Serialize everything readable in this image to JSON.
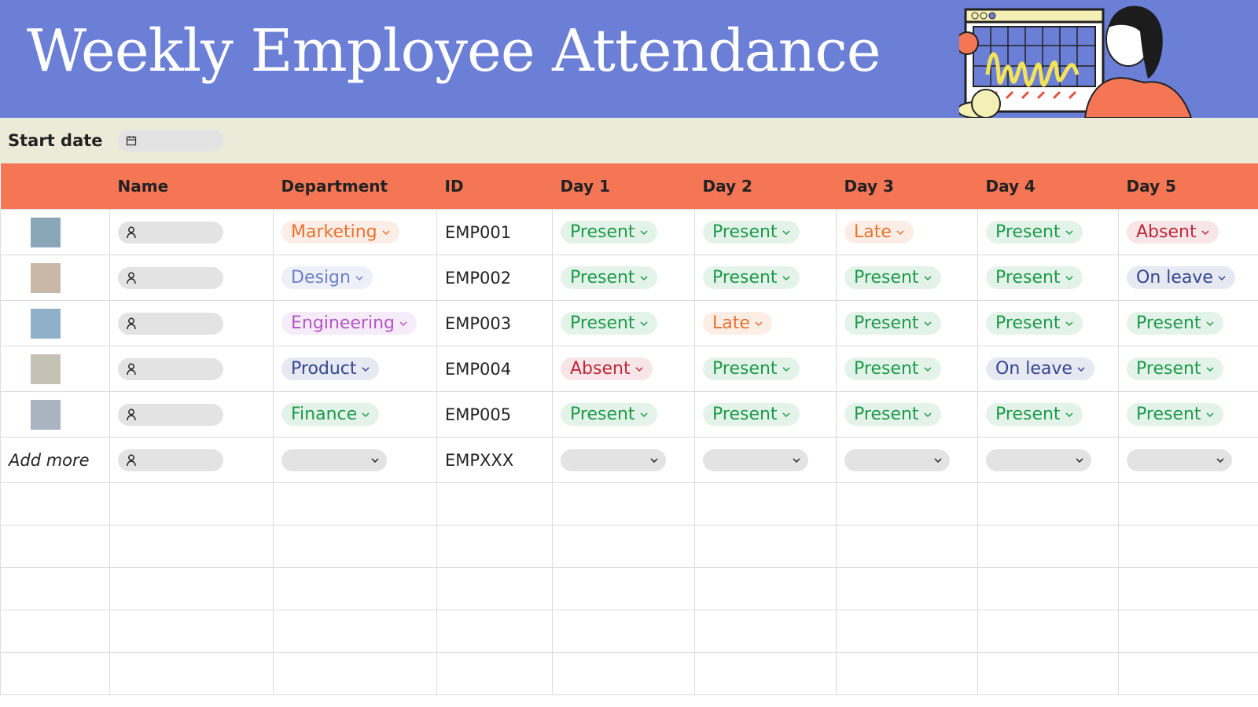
{
  "header": {
    "title": "Weekly Employee Attendance"
  },
  "start_date": {
    "label": "Start date"
  },
  "table": {
    "columns": [
      "Name",
      "Department",
      "ID",
      "Day 1",
      "Day 2",
      "Day 3",
      "Day 4",
      "Day 5"
    ],
    "rows": [
      {
        "department": {
          "text": "Marketing",
          "color": "#e8712e"
        },
        "id": "EMP001",
        "days": [
          {
            "text": "Present",
            "color": "#1c9a4a"
          },
          {
            "text": "Present",
            "color": "#1c9a4a"
          },
          {
            "text": "Late",
            "color": "#e8712e"
          },
          {
            "text": "Present",
            "color": "#1c9a4a"
          },
          {
            "text": "Absent",
            "color": "#c0283a"
          }
        ]
      },
      {
        "department": {
          "text": "Design",
          "color": "#6d80c9"
        },
        "id": "EMP002",
        "days": [
          {
            "text": "Present",
            "color": "#1c9a4a"
          },
          {
            "text": "Present",
            "color": "#1c9a4a"
          },
          {
            "text": "Present",
            "color": "#1c9a4a"
          },
          {
            "text": "Present",
            "color": "#1c9a4a"
          },
          {
            "text": "On leave",
            "color": "#34458f"
          }
        ]
      },
      {
        "department": {
          "text": "Engineering",
          "color": "#b455c6"
        },
        "id": "EMP003",
        "days": [
          {
            "text": "Present",
            "color": "#1c9a4a"
          },
          {
            "text": "Late",
            "color": "#e8712e"
          },
          {
            "text": "Present",
            "color": "#1c9a4a"
          },
          {
            "text": "Present",
            "color": "#1c9a4a"
          },
          {
            "text": "Present",
            "color": "#1c9a4a"
          }
        ]
      },
      {
        "department": {
          "text": "Product",
          "color": "#34458f"
        },
        "id": "EMP004",
        "days": [
          {
            "text": "Absent",
            "color": "#c0283a"
          },
          {
            "text": "Present",
            "color": "#1c9a4a"
          },
          {
            "text": "Present",
            "color": "#1c9a4a"
          },
          {
            "text": "On leave",
            "color": "#34458f"
          },
          {
            "text": "Present",
            "color": "#1c9a4a"
          }
        ]
      },
      {
        "department": {
          "text": "Finance",
          "color": "#1c9a4a"
        },
        "id": "EMP005",
        "days": [
          {
            "text": "Present",
            "color": "#1c9a4a"
          },
          {
            "text": "Present",
            "color": "#1c9a4a"
          },
          {
            "text": "Present",
            "color": "#1c9a4a"
          },
          {
            "text": "Present",
            "color": "#1c9a4a"
          },
          {
            "text": "Present",
            "color": "#1c9a4a"
          }
        ]
      }
    ],
    "add_more": {
      "label": "Add more",
      "id": "EMPXXX"
    }
  }
}
